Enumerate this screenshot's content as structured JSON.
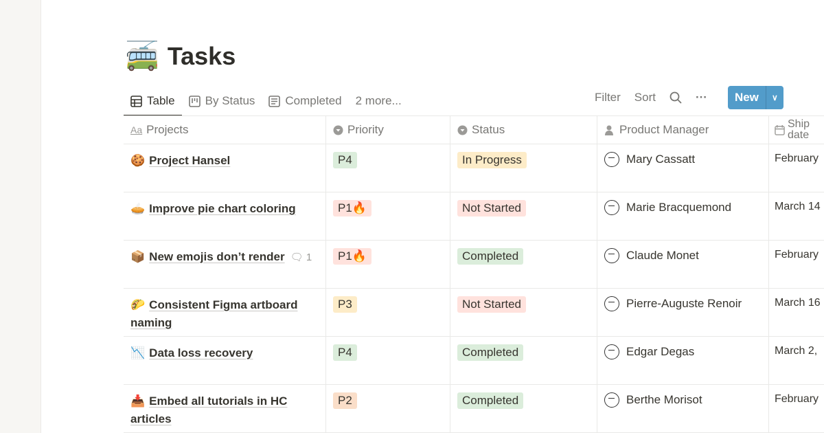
{
  "page": {
    "title": "Tasks",
    "emoji": "🚎"
  },
  "tabs": [
    {
      "label": "Table",
      "icon": "table-icon"
    },
    {
      "label": "By Status",
      "icon": "board-icon"
    },
    {
      "label": "Completed",
      "icon": "list-icon"
    },
    {
      "label": "2 more..."
    }
  ],
  "toolbar": {
    "filter": "Filter",
    "sort": "Sort",
    "new": "New"
  },
  "columns": [
    {
      "label": "Projects",
      "icon": "Aa"
    },
    {
      "label": "Priority"
    },
    {
      "label": "Status"
    },
    {
      "label": "Product Manager"
    },
    {
      "label": "Ship date"
    }
  ],
  "rows": [
    {
      "emoji": "🍪",
      "name": "Project Hansel",
      "comments": "",
      "priority": "P4",
      "pcolor": "#dbeddb",
      "status": "In Progress",
      "scolor": "#fdecc8",
      "pm": "Mary Cassatt",
      "date": "February"
    },
    {
      "emoji": "🥧",
      "name": "Improve pie chart coloring",
      "comments": "",
      "priority": "P1🔥",
      "pcolor": "#ffe2dd",
      "status": "Not Started",
      "scolor": "#ffe2dd",
      "pm": "Marie Bracquemond",
      "date": "March 14"
    },
    {
      "emoji": "📦",
      "name": "New emojis don’t render",
      "comments": "1",
      "priority": "P1🔥",
      "pcolor": "#ffe2dd",
      "status": "Completed",
      "scolor": "#dbeddb",
      "pm": "Claude Monet",
      "date": "February"
    },
    {
      "emoji": "🌮",
      "name": "Consistent Figma artboard naming",
      "comments": "",
      "priority": "P3",
      "pcolor": "#fdecc8",
      "status": "Not Started",
      "scolor": "#ffe2dd",
      "pm": "Pierre-Auguste Renoir",
      "date": "March 16"
    },
    {
      "emoji": "📉",
      "name": "Data loss recovery",
      "comments": "",
      "priority": "P4",
      "pcolor": "#dbeddb",
      "status": "Completed",
      "scolor": "#dbeddb",
      "pm": "Edgar Degas",
      "date": "March 2,"
    },
    {
      "emoji": "📥",
      "name": "Embed all tutorials in HC articles",
      "comments": "",
      "priority": "P2",
      "pcolor": "#fadec9",
      "status": "Completed",
      "scolor": "#dbeddb",
      "pm": "Berthe Morisot",
      "date": "February"
    }
  ]
}
